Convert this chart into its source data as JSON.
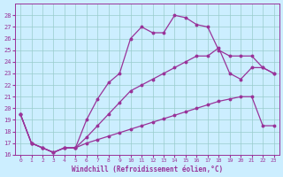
{
  "xlabel": "Windchill (Refroidissement éolien,°C)",
  "bg_color": "#cceeff",
  "line_color": "#993399",
  "grid_color": "#99cccc",
  "xlim": [
    -0.5,
    23.5
  ],
  "ylim": [
    16,
    29
  ],
  "xticks": [
    0,
    1,
    2,
    3,
    4,
    5,
    6,
    7,
    8,
    9,
    10,
    11,
    12,
    13,
    14,
    15,
    16,
    17,
    18,
    19,
    20,
    21,
    22,
    23
  ],
  "yticks": [
    16,
    17,
    18,
    19,
    20,
    21,
    22,
    23,
    24,
    25,
    26,
    27,
    28
  ],
  "line1_x": [
    0,
    1,
    2,
    3,
    4,
    5,
    6,
    7,
    8,
    9,
    10,
    11,
    12,
    13,
    14,
    15,
    16,
    17,
    18,
    19,
    20,
    21,
    22,
    23
  ],
  "line1_y": [
    19.5,
    17.0,
    16.6,
    16.2,
    16.6,
    16.6,
    17.0,
    17.3,
    17.6,
    17.9,
    18.2,
    18.5,
    18.8,
    19.1,
    19.4,
    19.7,
    20.0,
    20.3,
    20.6,
    20.8,
    21.0,
    21.0,
    18.5,
    18.5
  ],
  "line2_x": [
    0,
    1,
    2,
    3,
    4,
    5,
    6,
    7,
    8,
    9,
    10,
    11,
    12,
    13,
    14,
    15,
    16,
    17,
    18,
    19,
    20,
    21,
    22,
    23
  ],
  "line2_y": [
    19.5,
    17.0,
    16.6,
    16.2,
    16.6,
    16.6,
    19.0,
    20.8,
    22.2,
    23.0,
    26.0,
    27.0,
    26.5,
    26.5,
    28.0,
    27.8,
    27.2,
    27.0,
    25.0,
    24.5,
    24.5,
    24.5,
    23.5,
    23.0
  ],
  "line3_x": [
    0,
    1,
    2,
    3,
    4,
    5,
    6,
    7,
    8,
    9,
    10,
    11,
    12,
    13,
    14,
    15,
    16,
    17,
    18,
    19,
    20,
    21,
    22,
    23
  ],
  "line3_y": [
    19.5,
    17.0,
    16.6,
    16.2,
    16.6,
    16.6,
    17.5,
    18.5,
    19.5,
    20.5,
    21.5,
    22.0,
    22.5,
    23.0,
    23.5,
    24.0,
    24.5,
    24.5,
    25.2,
    23.0,
    22.5,
    23.5,
    23.5,
    23.0
  ]
}
